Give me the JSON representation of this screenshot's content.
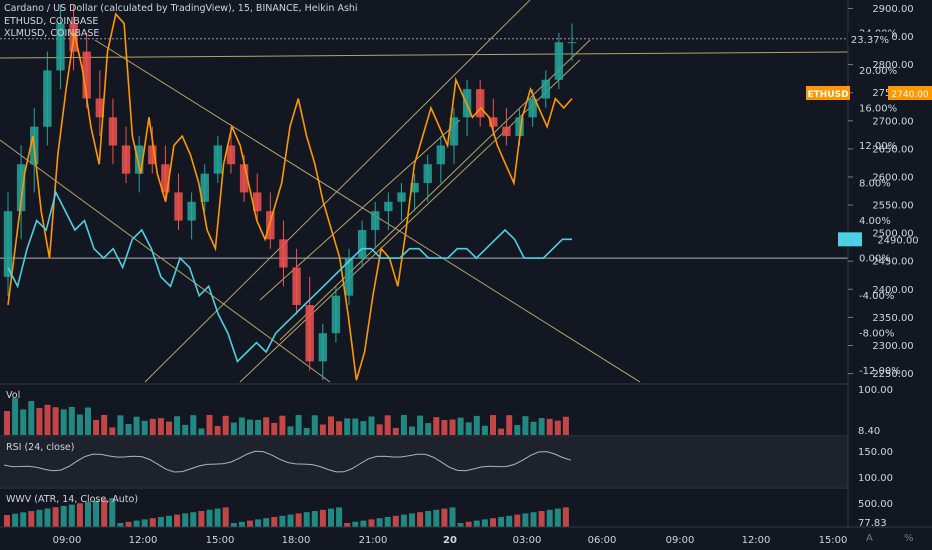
{
  "legend": {
    "main": "Cardano / US Dollar (calculated by TradingView), 15, BINANCE, Heikin Ashi",
    "eth": "ETHUSD, COINBASE",
    "xlm": "XLMUSD, COINBASE"
  },
  "panes": {
    "vol": "Vol",
    "rsi": "RSI (24, close)",
    "wwv": "WWV (ATR, 14, Close, Auto)"
  },
  "buttons": {
    "auto": "A",
    "log": "%"
  },
  "colors": {
    "background": "#131722",
    "up": "#26a69a",
    "down": "#ef5350",
    "eth": "#ff9800",
    "xlm": "#4dd0e1",
    "trendline": "#b5a36a",
    "rsi": "#b0b3bb"
  },
  "chart_data": [
    {
      "type": "candlestick",
      "title": "Cardano / US Dollar (calculated by TradingView), 15, BINANCE, Heikin Ashi",
      "x_ticks": [
        "09:00",
        "12:00",
        "15:00",
        "18:00",
        "21:00",
        "20",
        "03:00",
        "06:00",
        "09:00",
        "12:00",
        "15:00"
      ],
      "y_ticks_left_pct": [
        "24.00%",
        "20.00%",
        "16.00%",
        "12.00%",
        "8.00%",
        "4.00%",
        "0.00%",
        "-4.00%",
        "-8.00%",
        "-12.00%"
      ],
      "y_ticks_right": [
        "2900.00",
        "2850.00",
        "2800.00",
        "2750.00",
        "2700.00",
        "2650.00",
        "2600.00",
        "2550.00",
        "2500.00",
        "2450.00",
        "2400.00",
        "2350.00",
        "2300.00",
        "2250.00"
      ],
      "y_range_pct": [
        -13.2,
        27.5
      ],
      "y_range_price": [
        2235,
        2915
      ],
      "price_labels": {
        "current_pct": "23.37%",
        "eth_label": "ETHUSD",
        "eth_value": "2740.00",
        "xlm_value": "2490.00"
      },
      "series": [
        {
          "name": "ETHUSD, COINBASE",
          "values": [
            -5,
            2,
            9,
            13,
            5,
            0,
            11,
            18,
            24,
            20,
            14,
            10,
            22,
            26,
            25,
            13,
            9,
            15,
            9,
            6,
            12,
            13,
            11,
            8,
            3,
            1,
            10,
            14,
            12,
            8,
            4,
            2,
            5,
            8,
            14,
            17,
            13,
            10,
            6,
            3,
            0,
            -6,
            -13,
            -10,
            -4,
            1,
            0,
            -3,
            3,
            10,
            13,
            16,
            14,
            12,
            19,
            17,
            15,
            16,
            15,
            12,
            10,
            8,
            15,
            18,
            16,
            14,
            17,
            16,
            17
          ]
        },
        {
          "name": "XLMUSD, COINBASE",
          "values": [
            -1,
            -3,
            1,
            4,
            3,
            7,
            5,
            3,
            4,
            1,
            0,
            1,
            -1,
            2,
            3,
            1,
            -2,
            -3,
            0,
            -1,
            -4,
            -3,
            -6,
            -8,
            -11,
            -10,
            -9,
            -10,
            -8,
            -7,
            -6,
            -5,
            -4,
            -3,
            -2,
            -1,
            0,
            1,
            1,
            0,
            0,
            0,
            1,
            1,
            0,
            0,
            0,
            1,
            1,
            0,
            1,
            2,
            3,
            2,
            0,
            0,
            0,
            1,
            2,
            2
          ]
        }
      ],
      "candles": [
        [
          -2,
          7,
          -4,
          5
        ],
        [
          5,
          12,
          2,
          10
        ],
        [
          10,
          16,
          7,
          14
        ],
        [
          14,
          22,
          12,
          20
        ],
        [
          20,
          27,
          18,
          25
        ],
        [
          25,
          27,
          20,
          22
        ],
        [
          22,
          24,
          16,
          17
        ],
        [
          17,
          20,
          13,
          15
        ],
        [
          15,
          17,
          10,
          12
        ],
        [
          12,
          14,
          8,
          9
        ],
        [
          9,
          13,
          7,
          12
        ],
        [
          12,
          14,
          9,
          10
        ],
        [
          10,
          12,
          6,
          7
        ],
        [
          7,
          9,
          3,
          4
        ],
        [
          4,
          7,
          2,
          6
        ],
        [
          6,
          10,
          5,
          9
        ],
        [
          9,
          13,
          8,
          12
        ],
        [
          12,
          14,
          9,
          10
        ],
        [
          10,
          11,
          6,
          7
        ],
        [
          7,
          9,
          4,
          5
        ],
        [
          5,
          7,
          1,
          2
        ],
        [
          2,
          4,
          -3,
          -1
        ],
        [
          -1,
          1,
          -6,
          -5
        ],
        [
          -5,
          -2,
          -12,
          -11
        ],
        [
          -11,
          -7,
          -13,
          -8
        ],
        [
          -8,
          -3,
          -9,
          -4
        ],
        [
          -4,
          1,
          -5,
          0
        ],
        [
          0,
          4,
          -1,
          3
        ],
        [
          3,
          6,
          1,
          5
        ],
        [
          5,
          7,
          3,
          6
        ],
        [
          6,
          8,
          4,
          7
        ],
        [
          7,
          9,
          5,
          8
        ],
        [
          8,
          11,
          6,
          10
        ],
        [
          10,
          13,
          8,
          12
        ],
        [
          12,
          16,
          10,
          15
        ],
        [
          15,
          19,
          13,
          18
        ],
        [
          18,
          19,
          14,
          15
        ],
        [
          15,
          17,
          13,
          14
        ],
        [
          14,
          16,
          12,
          13
        ],
        [
          13,
          16,
          12,
          15
        ],
        [
          15,
          18,
          14,
          17
        ],
        [
          17,
          20,
          16,
          19
        ],
        [
          19,
          24,
          18,
          23
        ],
        [
          23,
          25,
          21,
          23
        ]
      ],
      "pane_ticks": {
        "vol": [
          "100.00",
          "8.40"
        ],
        "rsi": [
          "150.00",
          "100.00"
        ],
        "wwv": [
          "500.00",
          "77.83"
        ]
      },
      "pane_titles": [
        "Vol",
        "RSI (24, close)",
        "WWV (ATR, 14, Close, Auto)"
      ]
    }
  ]
}
